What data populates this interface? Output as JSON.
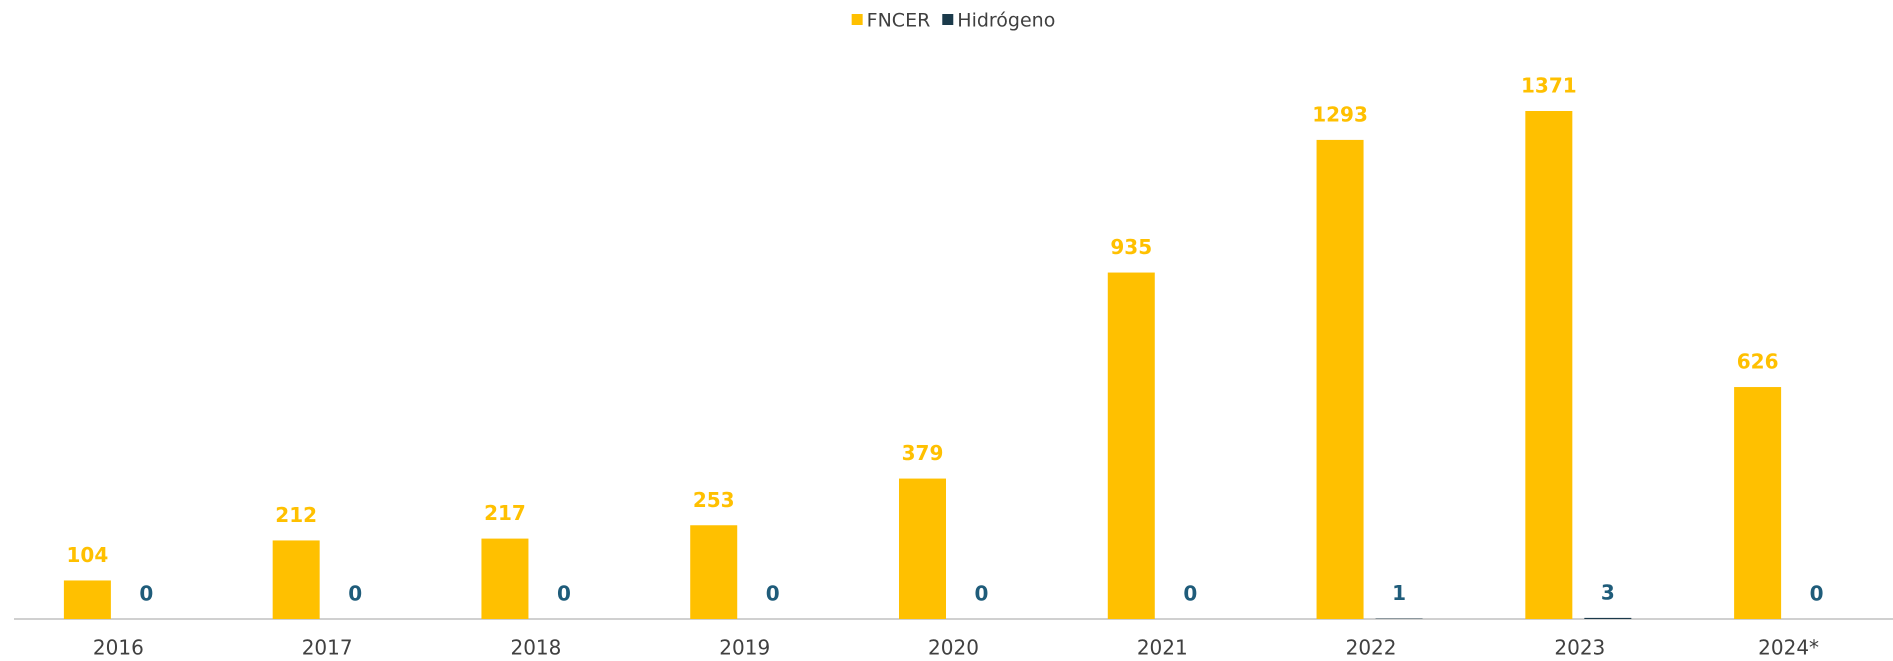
{
  "chart_data": {
    "type": "bar",
    "categories": [
      "2016",
      "2017",
      "2018",
      "2019",
      "2020",
      "2021",
      "2022",
      "2023",
      "2024*"
    ],
    "series": [
      {
        "name": "FNCER",
        "color": "#FFC000",
        "label_color": "#FFC000",
        "values": [
          104,
          212,
          217,
          253,
          379,
          935,
          1293,
          1371,
          626
        ]
      },
      {
        "name": "Hidrógeno",
        "color": "#1B3A4B",
        "label_color": "#1F5C7A",
        "values": [
          0,
          0,
          0,
          0,
          0,
          0,
          1,
          3,
          0
        ]
      }
    ],
    "legend": "top"
  }
}
